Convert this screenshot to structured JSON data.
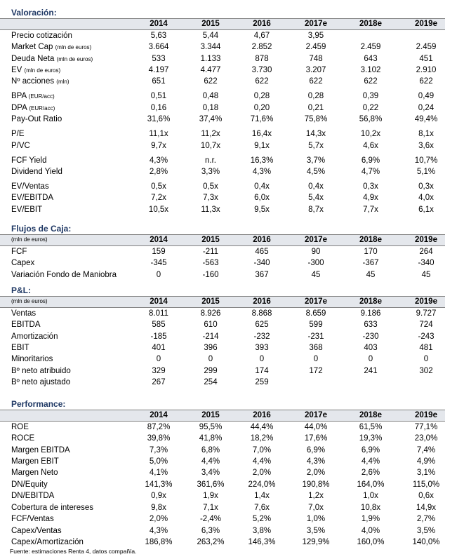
{
  "sections": [
    {
      "title": "Valoración:",
      "header": {
        "years": [
          "2014",
          "2015",
          "2016",
          "2017e",
          "2018e",
          "2019e"
        ]
      },
      "groups": [
        [
          {
            "label": "Precio cotización",
            "values": [
              "5,63",
              "5,44",
              "4,67",
              "3,95",
              null,
              null
            ]
          },
          {
            "label": "Market Cap",
            "unit": "(mln de euros)",
            "values": [
              "3.664",
              "3.344",
              "2.852",
              "2.459",
              "2.459",
              "2.459"
            ]
          },
          {
            "label": "Deuda Neta",
            "unit": "(mln de euros)",
            "values": [
              "533",
              "1.133",
              "878",
              "748",
              "643",
              "451"
            ]
          },
          {
            "label": "EV",
            "unit": "(mln de euros)",
            "values": [
              "4.197",
              "4.477",
              "3.730",
              "3.207",
              "3.102",
              "2.910"
            ]
          },
          {
            "label": "Nº acciones",
            "unit": "(mln)",
            "values": [
              "651",
              "622",
              "622",
              "622",
              "622",
              "622"
            ]
          }
        ],
        [
          {
            "label": "BPA",
            "unit": "(EUR/acc)",
            "values": [
              "0,51",
              "0,48",
              "0,28",
              "0,28",
              "0,39",
              "0,49"
            ]
          },
          {
            "label": "DPA",
            "unit": "(EUR/acc)",
            "values": [
              "0,16",
              "0,18",
              "0,20",
              "0,21",
              "0,22",
              "0,24"
            ]
          },
          {
            "label": "Pay-Out Ratio",
            "values": [
              "31,6%",
              "37,4%",
              "71,6%",
              "75,8%",
              "56,8%",
              "49,4%"
            ]
          }
        ],
        [
          {
            "label": "P/E",
            "values": [
              "11,1x",
              "11,2x",
              "16,4x",
              "14,3x",
              "10,2x",
              "8,1x"
            ]
          },
          {
            "label": "P/VC",
            "values": [
              "9,7x",
              "10,7x",
              "9,1x",
              "5,7x",
              "4,6x",
              "3,6x"
            ]
          }
        ],
        [
          {
            "label": "FCF Yield",
            "values": [
              "4,3%",
              "n.r.",
              "16,3%",
              "3,7%",
              "6,9%",
              "10,7%"
            ]
          },
          {
            "label": "Dividend Yield",
            "values": [
              "2,8%",
              "3,3%",
              "4,3%",
              "4,5%",
              "4,7%",
              "5,1%"
            ]
          }
        ],
        [
          {
            "label": "EV/Ventas",
            "values": [
              "0,5x",
              "0,5x",
              "0,4x",
              "0,4x",
              "0,3x",
              "0,3x"
            ]
          },
          {
            "label": "EV/EBITDA",
            "values": [
              "7,2x",
              "7,3x",
              "6,0x",
              "5,4x",
              "4,9x",
              "4,0x"
            ]
          },
          {
            "label": "EV/EBIT",
            "values": [
              "10,5x",
              "11,3x",
              "9,5x",
              "8,7x",
              "7,7x",
              "6,1x"
            ]
          }
        ]
      ]
    },
    {
      "title": "Flujos de Caja:",
      "header": {
        "unit": "(mln de euros)",
        "years": [
          "2014",
          "2015",
          "2016",
          "2017e",
          "2018e",
          "2019e"
        ]
      },
      "groups": [
        [
          {
            "label": "FCF",
            "values": [
              "159",
              "-211",
              "465",
              "90",
              "170",
              "264"
            ]
          },
          {
            "label": "Capex",
            "values": [
              "-345",
              "-563",
              "-340",
              "-300",
              "-367",
              "-340"
            ]
          },
          {
            "label": "Variación Fondo de Maniobra",
            "values": [
              "0",
              "-160",
              "367",
              "45",
              "45",
              "45"
            ]
          }
        ]
      ]
    },
    {
      "title": "P&L:",
      "header": {
        "unit": "(mln de euros)",
        "years": [
          "2014",
          "2015",
          "2016",
          "2017e",
          "2018e",
          "2019e"
        ]
      },
      "groups": [
        [
          {
            "label": "Ventas",
            "values": [
              "8.011",
              "8.926",
              "8.868",
              "8.659",
              "9.186",
              "9.727"
            ]
          },
          {
            "label": "EBITDA",
            "values": [
              "585",
              "610",
              "625",
              "599",
              "633",
              "724"
            ]
          },
          {
            "label": "Amortización",
            "values": [
              "-185",
              "-214",
              "-232",
              "-231",
              "-230",
              "-243"
            ]
          },
          {
            "label": "EBIT",
            "values": [
              "401",
              "396",
              "393",
              "368",
              "403",
              "481"
            ]
          },
          {
            "label": "Minoritarios",
            "values": [
              "0",
              "0",
              "0",
              "0",
              "0",
              "0"
            ]
          },
          {
            "label": "Bº neto atribuido",
            "values": [
              "329",
              "299",
              "174",
              "172",
              "241",
              "302"
            ]
          },
          {
            "label": "Bº neto ajustado",
            "values": [
              "267",
              "254",
              "259",
              null,
              null,
              null
            ]
          }
        ]
      ]
    },
    {
      "title": "Performance:",
      "header": {
        "years": [
          "2014",
          "2015",
          "2016",
          "2017e",
          "2018e",
          "2019e"
        ]
      },
      "groups": [
        [
          {
            "label": "ROE",
            "values": [
              "87,2%",
              "95,5%",
              "44,4%",
              "44,0%",
              "61,5%",
              "77,1%"
            ]
          },
          {
            "label": "ROCE",
            "values": [
              "39,8%",
              "41,8%",
              "18,2%",
              "17,6%",
              "19,3%",
              "23,0%"
            ]
          },
          {
            "label": "Margen EBITDA",
            "values": [
              "7,3%",
              "6,8%",
              "7,0%",
              "6,9%",
              "6,9%",
              "7,4%"
            ]
          },
          {
            "label": "Margen EBIT",
            "values": [
              "5,0%",
              "4,4%",
              "4,4%",
              "4,3%",
              "4,4%",
              "4,9%"
            ]
          },
          {
            "label": "Margen Neto",
            "values": [
              "4,1%",
              "3,4%",
              "2,0%",
              "2,0%",
              "2,6%",
              "3,1%"
            ]
          },
          {
            "label": "DN/Equity",
            "values": [
              "141,3%",
              "361,6%",
              "224,0%",
              "190,8%",
              "164,0%",
              "115,0%"
            ]
          },
          {
            "label": "DN/EBITDA",
            "values": [
              "0,9x",
              "1,9x",
              "1,4x",
              "1,2x",
              "1,0x",
              "0,6x"
            ]
          },
          {
            "label": "Cobertura de intereses",
            "values": [
              "9,8x",
              "7,1x",
              "7,6x",
              "7,0x",
              "10,8x",
              "14,9x"
            ]
          },
          {
            "label": "FCF/Ventas",
            "values": [
              "2,0%",
              "-2,4%",
              "5,2%",
              "1,0%",
              "1,9%",
              "2,7%"
            ]
          },
          {
            "label": "Capex/Ventas",
            "values": [
              "4,3%",
              "6,3%",
              "3,8%",
              "3,5%",
              "4,0%",
              "3,5%"
            ]
          },
          {
            "label": "Capex/Amortización",
            "values": [
              "186,8%",
              "263,2%",
              "146,3%",
              "129,9%",
              "160,0%",
              "140,0%"
            ]
          }
        ]
      ]
    }
  ],
  "footer": "Fuente: estimaciones Renta 4, datos compañía."
}
